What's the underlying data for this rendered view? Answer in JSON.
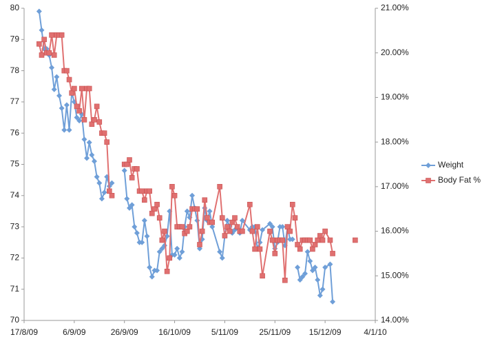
{
  "chart_data": {
    "type": "line",
    "x": [
      "2009-08-23",
      "2009-08-24",
      "2009-08-25",
      "2009-08-26",
      "2009-08-27",
      "2009-08-28",
      "2009-08-29",
      "2009-08-30",
      "2009-08-31",
      "2009-09-01",
      "2009-09-02",
      "2009-09-03",
      "2009-09-04",
      "2009-09-05",
      "2009-09-06",
      "2009-09-07",
      "2009-09-08",
      "2009-09-09",
      "2009-09-10",
      "2009-09-11",
      "2009-09-12",
      "2009-09-13",
      "2009-09-14",
      "2009-09-15",
      "2009-09-16",
      "2009-09-17",
      "2009-09-18",
      "2009-09-19",
      "2009-09-20",
      "2009-09-21",
      "2009-09-22",
      "2009-09-26",
      "2009-09-27",
      "2009-09-28",
      "2009-09-29",
      "2009-09-30",
      "2009-10-01",
      "2009-10-02",
      "2009-10-03",
      "2009-10-04",
      "2009-10-05",
      "2009-10-06",
      "2009-10-07",
      "2009-10-08",
      "2009-10-09",
      "2009-10-10",
      "2009-10-11",
      "2009-10-12",
      "2009-10-13",
      "2009-10-14",
      "2009-10-15",
      "2009-10-16",
      "2009-10-17",
      "2009-10-18",
      "2009-10-19",
      "2009-10-20",
      "2009-10-21",
      "2009-10-22",
      "2009-10-23",
      "2009-10-24",
      "2009-10-25",
      "2009-10-26",
      "2009-10-27",
      "2009-10-28",
      "2009-10-29",
      "2009-10-30",
      "2009-10-31",
      "2009-11-03",
      "2009-11-04",
      "2009-11-05",
      "2009-11-06",
      "2009-11-07",
      "2009-11-08",
      "2009-11-09",
      "2009-11-10",
      "2009-11-11",
      "2009-11-12",
      "2009-11-15",
      "2009-11-16",
      "2009-11-17",
      "2009-11-18",
      "2009-11-19",
      "2009-11-20",
      "2009-11-23",
      "2009-11-24",
      "2009-11-25",
      "2009-11-26",
      "2009-11-27",
      "2009-11-28",
      "2009-11-29",
      "2009-11-30",
      "2009-12-01",
      "2009-12-02",
      "2009-12-03",
      "2009-12-04",
      "2009-12-05",
      "2009-12-06",
      "2009-12-07",
      "2009-12-08",
      "2009-12-09",
      "2009-12-10",
      "2009-12-11",
      "2009-12-12",
      "2009-12-13",
      "2009-12-14",
      "2009-12-15",
      "2009-12-17",
      "2009-12-18",
      "2009-12-19",
      "2009-12-27"
    ],
    "series": [
      {
        "name": "Weight",
        "color": "#6f9fd8",
        "marker": "diamond",
        "values": [
          79.9,
          79.3,
          78.7,
          78.7,
          78.5,
          78.1,
          77.4,
          77.8,
          77.2,
          76.8,
          76.1,
          76.9,
          76.1,
          77.3,
          77.0,
          76.5,
          76.4,
          76.6,
          75.8,
          75.2,
          75.7,
          75.3,
          75.1,
          74.6,
          74.4,
          73.9,
          74.1,
          74.6,
          74.3,
          74.4,
          null,
          74.8,
          73.9,
          73.6,
          73.7,
          73.0,
          72.8,
          72.5,
          72.5,
          73.2,
          72.7,
          71.7,
          71.4,
          71.6,
          71.6,
          72.2,
          72.3,
          72.4,
          72.7,
          73.5,
          72.1,
          72.1,
          72.3,
          72.0,
          72.2,
          73.0,
          73.5,
          73.3,
          74.0,
          73.6,
          73.2,
          72.3,
          72.6,
          73.6,
          73.2,
          73.5,
          73.0,
          72.2,
          72.0,
          72.7,
          73.2,
          73.0,
          72.8,
          72.9,
          73.0,
          72.8,
          73.2,
          72.9,
          73.0,
          73.0,
          72.3,
          72.5,
          72.9,
          73.1,
          73.0,
          72.3,
          72.5,
          73.0,
          73.0,
          72.4,
          73.0,
          72.6,
          72.6,
          null,
          71.7,
          71.3,
          71.4,
          71.5,
          72.2,
          71.9,
          71.6,
          71.7,
          71.3,
          70.8,
          71.0,
          71.7,
          71.8,
          70.6,
          null,
          null
        ]
      },
      {
        "name": "Body Fat %",
        "color": "#e07070",
        "marker": "square",
        "axis": "y2",
        "values": [
          20.2,
          19.95,
          20.3,
          20.0,
          20.0,
          20.4,
          19.95,
          20.4,
          20.4,
          20.4,
          19.6,
          19.6,
          19.4,
          19.1,
          19.2,
          18.8,
          18.7,
          19.2,
          18.5,
          19.2,
          19.2,
          18.4,
          18.5,
          18.8,
          18.45,
          18.2,
          18.2,
          18.0,
          16.9,
          16.8,
          null,
          17.5,
          17.5,
          17.6,
          17.2,
          17.4,
          17.4,
          16.9,
          16.9,
          16.7,
          16.9,
          16.9,
          16.4,
          16.5,
          16.6,
          16.3,
          15.8,
          16.0,
          15.1,
          15.4,
          17.0,
          16.8,
          16.1,
          16.1,
          16.1,
          15.95,
          16.0,
          16.1,
          16.5,
          16.5,
          16.5,
          15.7,
          16.0,
          16.7,
          16.3,
          16.2,
          16.2,
          17.0,
          16.3,
          15.9,
          16.1,
          16.0,
          16.2,
          16.3,
          16.1,
          16.0,
          16.0,
          16.6,
          16.0,
          15.6,
          16.1,
          15.6,
          15.0,
          16.0,
          15.8,
          15.5,
          15.8,
          15.8,
          15.8,
          14.9,
          16.1,
          16.0,
          16.6,
          16.3,
          15.7,
          15.6,
          15.8,
          15.8,
          15.8,
          15.8,
          15.6,
          15.7,
          15.8,
          15.9,
          15.8,
          16.0,
          15.8,
          15.5,
          null,
          15.8
        ]
      }
    ],
    "xlim": [
      "2009-08-17",
      "2010-01-04"
    ],
    "xticks": [
      {
        "value": "2009-08-17",
        "label": "17/8/09"
      },
      {
        "value": "2009-09-06",
        "label": "6/9/09"
      },
      {
        "value": "2009-09-26",
        "label": "26/9/09"
      },
      {
        "value": "2009-10-16",
        "label": "16/10/09"
      },
      {
        "value": "2009-11-05",
        "label": "5/11/09"
      },
      {
        "value": "2009-11-25",
        "label": "25/11/09"
      },
      {
        "value": "2009-12-15",
        "label": "15/12/09"
      },
      {
        "value": "2010-01-04",
        "label": "4/1/10"
      }
    ],
    "ylim": [
      70,
      80
    ],
    "yticks": [
      70,
      71,
      72,
      73,
      74,
      75,
      76,
      77,
      78,
      79,
      80
    ],
    "y2lim": [
      14,
      21
    ],
    "y2ticks": [
      {
        "value": 14,
        "label": "14.00%"
      },
      {
        "value": 15,
        "label": "15.00%"
      },
      {
        "value": 16,
        "label": "16.00%"
      },
      {
        "value": 17,
        "label": "17.00%"
      },
      {
        "value": 18,
        "label": "18.00%"
      },
      {
        "value": 19,
        "label": "19.00%"
      },
      {
        "value": 20,
        "label": "20.00%"
      },
      {
        "value": 21,
        "label": "21.00%"
      }
    ],
    "grid": false,
    "legend": "right"
  }
}
